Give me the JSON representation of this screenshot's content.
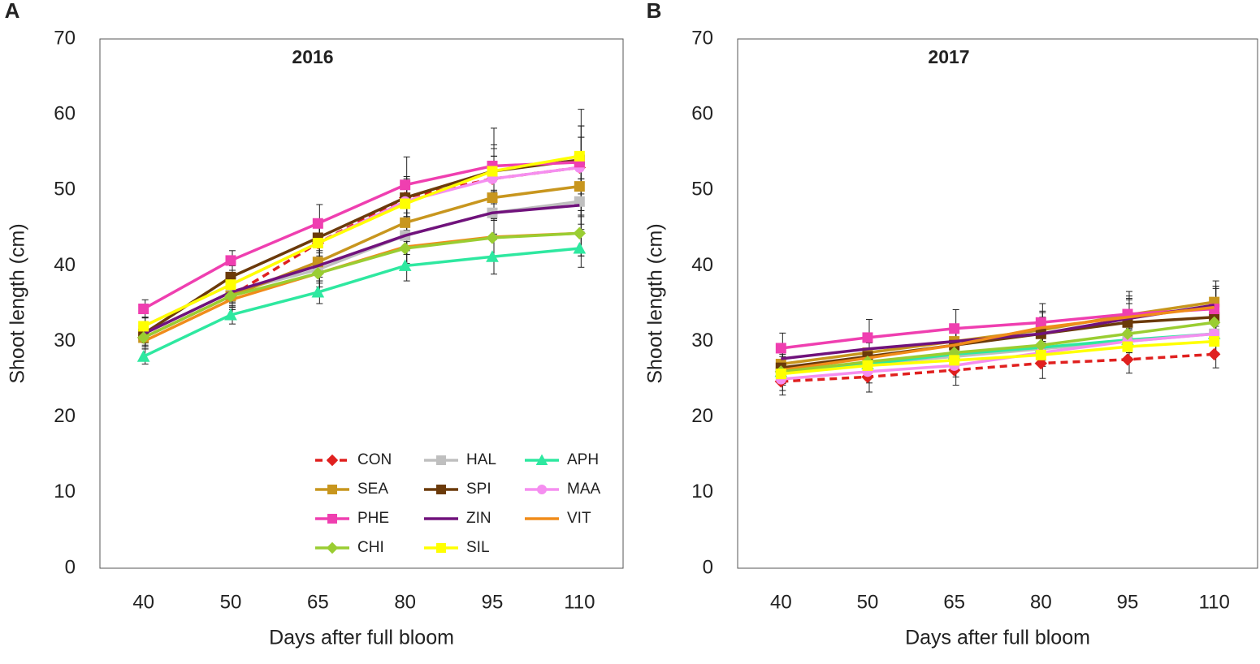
{
  "chart_data": [
    {
      "type": "line",
      "panel": "A",
      "title": "2016",
      "x_label": "Days after full bloom",
      "y_label": "Shoot length (cm)",
      "categories": [
        "40",
        "50",
        "65",
        "80",
        "95",
        "110"
      ],
      "ylim": [
        0,
        70
      ],
      "yticks": [
        0,
        10,
        20,
        30,
        40,
        50,
        60,
        70
      ],
      "legend": true,
      "series": [
        {
          "name": "CON",
          "color": "#e0201f",
          "marker": "diamond",
          "dashed": true,
          "values": [
            30.5,
            36,
            43,
            49,
            51.5,
            53
          ],
          "errors": [
            1.2,
            1.5,
            2,
            2.5,
            3,
            4
          ]
        },
        {
          "name": "HAL",
          "color": "#bfbfbf",
          "marker": "square",
          "dashed": false,
          "values": [
            31,
            36.5,
            39.5,
            44,
            47,
            48.5
          ],
          "errors": [
            1,
            1.3,
            1.8,
            2.5,
            2.8,
            3
          ]
        },
        {
          "name": "APH",
          "color": "#2ee8a0",
          "marker": "triangle",
          "dashed": false,
          "values": [
            28,
            33.5,
            36.5,
            40,
            41.2,
            42.3
          ],
          "errors": [
            1,
            1.2,
            1.5,
            2,
            2.3,
            2.5
          ]
        },
        {
          "name": "SEA",
          "color": "#c8961e",
          "marker": "square",
          "dashed": false,
          "values": [
            30.5,
            36,
            40.5,
            45.7,
            49,
            50.5
          ],
          "errors": [
            1.2,
            1.5,
            2,
            2.5,
            3,
            4
          ]
        },
        {
          "name": "SPI",
          "color": "#6b3a0a",
          "marker": "square",
          "dashed": false,
          "values": [
            31,
            38.5,
            43.7,
            49,
            52.5,
            54
          ],
          "errors": [
            1.2,
            1.5,
            2,
            2.8,
            3,
            4.5
          ]
        },
        {
          "name": "MAA",
          "color": "#f58ef0",
          "marker": "circle",
          "dashed": false,
          "values": [
            32,
            37.5,
            43,
            48.5,
            51.5,
            53
          ],
          "errors": [
            1.2,
            1.5,
            2,
            2.5,
            3,
            4
          ]
        },
        {
          "name": "PHE",
          "color": "#ef3fb0",
          "marker": "square",
          "dashed": false,
          "values": [
            34.3,
            40.7,
            45.6,
            50.7,
            53.2,
            53.7
          ],
          "errors": [
            1.2,
            1.3,
            2.5,
            3.7,
            5,
            7
          ]
        },
        {
          "name": "ZIN",
          "color": "#70127c",
          "marker": "none",
          "dashed": false,
          "values": [
            31,
            36.5,
            40,
            44,
            47,
            48
          ],
          "errors": [
            1.2,
            1.5,
            2,
            2.5,
            3,
            3.5
          ]
        },
        {
          "name": "VIT",
          "color": "#f08c1a",
          "marker": "none",
          "dashed": false,
          "values": [
            30,
            35.5,
            39,
            42.5,
            43.8,
            44.3
          ],
          "errors": [
            1,
            1.3,
            1.8,
            2.2,
            2.5,
            3
          ]
        },
        {
          "name": "CHI",
          "color": "#9acd32",
          "marker": "diamond",
          "dashed": false,
          "values": [
            30.5,
            36,
            39,
            42.3,
            43.7,
            44.3
          ],
          "errors": [
            1,
            1.3,
            1.8,
            2.2,
            2.5,
            3
          ]
        },
        {
          "name": "SIL",
          "color": "#ffff00",
          "marker": "square",
          "dashed": false,
          "values": [
            32,
            37.5,
            43,
            48.2,
            52.5,
            54.5
          ],
          "errors": [
            1.2,
            1.5,
            2,
            2.5,
            3.5,
            4
          ]
        }
      ]
    },
    {
      "type": "line",
      "panel": "B",
      "title": "2017",
      "x_label": "Days after full bloom",
      "y_label": "Shoot length (cm)",
      "categories": [
        "40",
        "50",
        "65",
        "80",
        "95",
        "110"
      ],
      "ylim": [
        0,
        70
      ],
      "yticks": [
        0,
        10,
        20,
        30,
        40,
        50,
        60,
        70
      ],
      "legend": false,
      "series": [
        {
          "color": "#e0201f",
          "marker": "diamond",
          "dashed": true,
          "values": [
            24.7,
            25.3,
            26.2,
            27.1,
            27.6,
            28.3
          ],
          "errors": [
            1.8,
            2,
            2,
            2,
            1.8,
            1.8
          ]
        },
        {
          "color": "#bfbfbf",
          "marker": "square",
          "dashed": false,
          "values": [
            26,
            27,
            28,
            29,
            30,
            31
          ],
          "errors": [
            1.5,
            1.5,
            1.5,
            1.5,
            1.5,
            1.5
          ]
        },
        {
          "color": "#2ee8a0",
          "marker": "triangle",
          "dashed": false,
          "values": [
            26,
            27,
            28.3,
            29.2,
            30.2,
            31
          ],
          "errors": [
            1.5,
            1.5,
            1.5,
            1.5,
            1.5,
            1.5
          ]
        },
        {
          "color": "#c8961e",
          "marker": "square",
          "dashed": false,
          "values": [
            27,
            28.5,
            30,
            31.5,
            33.5,
            35.2
          ],
          "errors": [
            2,
            2,
            2,
            2.5,
            2.5,
            2.8
          ]
        },
        {
          "color": "#6b3a0a",
          "marker": "square",
          "dashed": false,
          "values": [
            26.5,
            28,
            29.5,
            31,
            32.5,
            33.2
          ],
          "errors": [
            1.8,
            2,
            2,
            2.2,
            2.5,
            2.5
          ]
        },
        {
          "color": "#f58ef0",
          "marker": "circle",
          "dashed": false,
          "values": [
            25,
            26,
            26.8,
            28.5,
            30,
            31
          ],
          "errors": [
            1.5,
            1.5,
            1.5,
            1.5,
            1.5,
            1.5
          ]
        },
        {
          "color": "#ef3fb0",
          "marker": "square",
          "dashed": false,
          "values": [
            29.1,
            30.5,
            31.7,
            32.5,
            33.6,
            34.3
          ],
          "errors": [
            2,
            2.4,
            2.5,
            2.5,
            3,
            3
          ]
        },
        {
          "color": "#70127c",
          "marker": "none",
          "dashed": false,
          "values": [
            27.7,
            29,
            30,
            31,
            33,
            34.8
          ],
          "errors": [
            2,
            2,
            2,
            2,
            2.5,
            2.5
          ]
        },
        {
          "color": "#f08c1a",
          "marker": "none",
          "dashed": false,
          "values": [
            26.2,
            27.8,
            29.5,
            31.8,
            33.2,
            34.5
          ],
          "errors": [
            1.8,
            2,
            2,
            2,
            2.5,
            2.5
          ]
        },
        {
          "color": "#9acd32",
          "marker": "diamond",
          "dashed": false,
          "values": [
            26,
            27.3,
            28.5,
            29.5,
            31,
            32.5
          ],
          "errors": [
            1.5,
            1.5,
            1.5,
            1.5,
            1.8,
            2
          ]
        },
        {
          "color": "#ffff00",
          "marker": "square",
          "dashed": false,
          "values": [
            25.7,
            26.8,
            27.5,
            28.2,
            29.3,
            30
          ],
          "errors": [
            1.5,
            1.5,
            1.5,
            1.5,
            1.5,
            1.5
          ]
        }
      ]
    }
  ]
}
